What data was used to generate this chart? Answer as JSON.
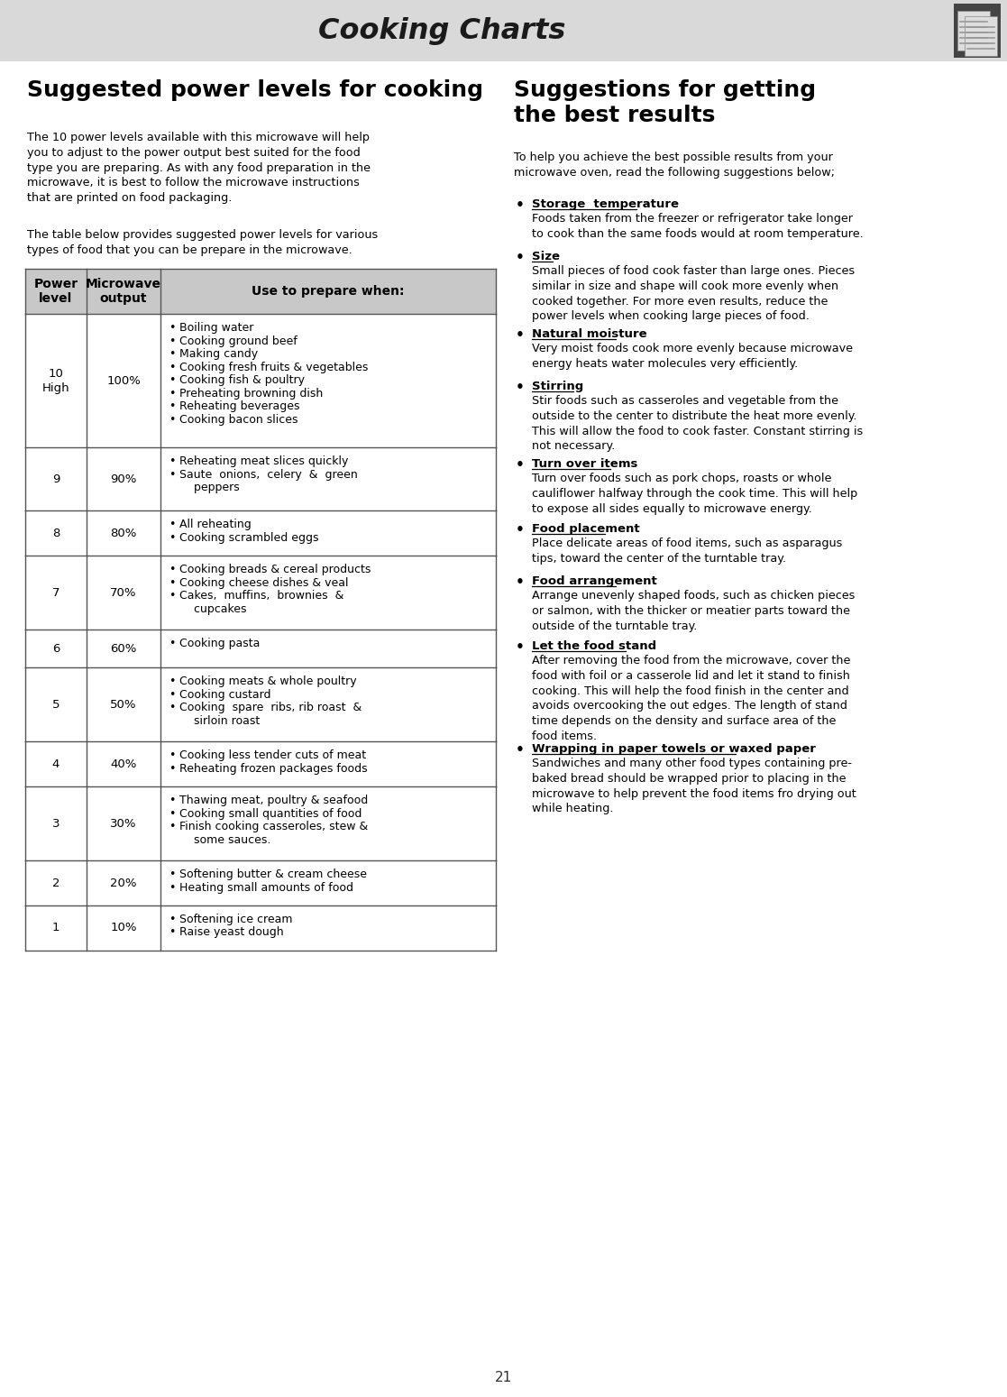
{
  "page_bg": "#ffffff",
  "header_bg": "#d9d9d9",
  "header_text": "Cooking Charts",
  "header_text_color": "#1a1a1a",
  "page_number": "21",
  "left_col_title": "Suggested power levels for cooking",
  "left_col_intro1": "The 10 power levels available with this microwave will help\nyou to adjust to the power output best suited for the food\ntype you are preparing. As with any food preparation in the\nmicrowave, it is best to follow the microwave instructions\nthat are printed on food packaging.",
  "left_col_intro2": "The table below provides suggested power levels for various\ntypes of food that you can be prepare in the microwave.",
  "table_header": [
    "Power\nlevel",
    "Microwave\noutput",
    "Use to prepare when:"
  ],
  "table_header_bg": "#c8c8c8",
  "table_border_color": "#555555",
  "table_rows": [
    {
      "level": "10\nHigh",
      "output": "100%",
      "items": [
        "Boiling water",
        "Cooking ground beef",
        "Making candy",
        "Cooking fresh fruits & vegetables",
        "Cooking fish & poultry",
        "Preheating browning dish",
        "Reheating beverages",
        "Cooking bacon slices"
      ]
    },
    {
      "level": "9",
      "output": "90%",
      "items": [
        "Reheating meat slices quickly",
        "Saute  onions,  celery  &  green\n    peppers"
      ]
    },
    {
      "level": "8",
      "output": "80%",
      "items": [
        "All reheating",
        "Cooking scrambled eggs"
      ]
    },
    {
      "level": "7",
      "output": "70%",
      "items": [
        "Cooking breads & cereal products",
        "Cooking cheese dishes & veal",
        "Cakes,  muffins,  brownies  &\n    cupcakes"
      ]
    },
    {
      "level": "6",
      "output": "60%",
      "items": [
        "Cooking pasta"
      ]
    },
    {
      "level": "5",
      "output": "50%",
      "items": [
        "Cooking meats & whole poultry",
        "Cooking custard",
        "Cooking  spare  ribs, rib roast  &\n    sirloin roast"
      ]
    },
    {
      "level": "4",
      "output": "40%",
      "items": [
        "Cooking less tender cuts of meat",
        "Reheating frozen packages foods"
      ]
    },
    {
      "level": "3",
      "output": "30%",
      "items": [
        "Thawing meat, poultry & seafood",
        "Cooking small quantities of food",
        "Finish cooking casseroles, stew &\n    some sauces."
      ]
    },
    {
      "level": "2",
      "output": "20%",
      "items": [
        "Softening butter & cream cheese",
        "Heating small amounts of food"
      ]
    },
    {
      "level": "1",
      "output": "10%",
      "items": [
        "Softening ice cream",
        "Raise yeast dough"
      ]
    }
  ],
  "right_col_title": "Suggestions for getting\nthe best results",
  "right_col_intro": "To help you achieve the best possible results from your\nmicrowave oven, read the following suggestions below;",
  "right_col_sections": [
    {
      "title": "Storage  temperature",
      "body": "Foods taken from the freezer or refrigerator take longer\nto cook than the same foods would at room temperature."
    },
    {
      "title": "Size",
      "body": "Small pieces of food cook faster than large ones. Pieces\nsimilar in size and shape will cook more evenly when\ncooked together. For more even results, reduce the\npower levels when cooking large pieces of food."
    },
    {
      "title": "Natural moisture",
      "body": "Very moist foods cook more evenly because microwave\nenergy heats water molecules very efficiently."
    },
    {
      "title": "Stirring",
      "body": "Stir foods such as casseroles and vegetable from the\noutside to the center to distribute the heat more evenly.\nThis will allow the food to cook faster. Constant stirring is\nnot necessary."
    },
    {
      "title": "Turn over items",
      "body": "Turn over foods such as pork chops, roasts or whole\ncauliflower halfway through the cook time. This will help\nto expose all sides equally to microwave energy."
    },
    {
      "title": "Food placement",
      "body": "Place delicate areas of food items, such as asparagus\ntips, toward the center of the turntable tray."
    },
    {
      "title": "Food arrangement",
      "body": "Arrange unevenly shaped foods, such as chicken pieces\nor salmon, with the thicker or meatier parts toward the\noutside of the turntable tray."
    },
    {
      "title": "Let the food stand",
      "body": "After removing the food from the microwave, cover the\nfood with foil or a casserole lid and let it stand to finish\ncooking. This will help the food finish in the center and\navoids overcooking the out edges. The length of stand\ntime depends on the density and surface area of the\nfood items."
    },
    {
      "title": "Wrapping in paper towels or waxed paper",
      "body": "Sandwiches and many other food types containing pre-\nbaked bread should be wrapped prior to placing in the\nmicrowave to help prevent the food items fro drying out\nwhile heating."
    }
  ]
}
